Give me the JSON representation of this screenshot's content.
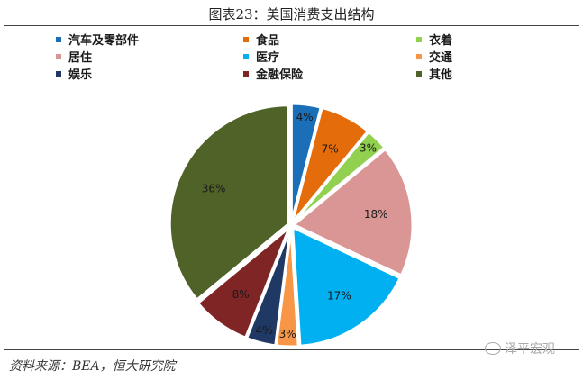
{
  "title": "图表23：美国消费支出结构",
  "source": "资料来源：BEA，恒大研究院",
  "watermark": "泽平宏观",
  "chart_data": {
    "type": "pie",
    "title": "图表23：美国消费支出结构",
    "legend_placement": "top",
    "series": [
      {
        "name": "汽车及零部件",
        "value": 4,
        "label": "4%",
        "color": "#1a6fb8"
      },
      {
        "name": "食品",
        "value": 7,
        "label": "7%",
        "color": "#e46c0a"
      },
      {
        "name": "衣着",
        "value": 3,
        "label": "3%",
        "color": "#92d050"
      },
      {
        "name": "居住",
        "value": 18,
        "label": "18%",
        "color": "#d99694"
      },
      {
        "name": "医疗",
        "value": 17,
        "label": "17%",
        "color": "#00b0f0"
      },
      {
        "name": "交通",
        "value": 3,
        "label": "3%",
        "color": "#f79646"
      },
      {
        "name": "娱乐",
        "value": 4,
        "label": "4%",
        "color": "#1f3864"
      },
      {
        "name": "金融保险",
        "value": 8,
        "label": "8%",
        "color": "#7f2525"
      },
      {
        "name": "其他",
        "value": 36,
        "label": "36%",
        "color": "#4f6228"
      }
    ]
  }
}
